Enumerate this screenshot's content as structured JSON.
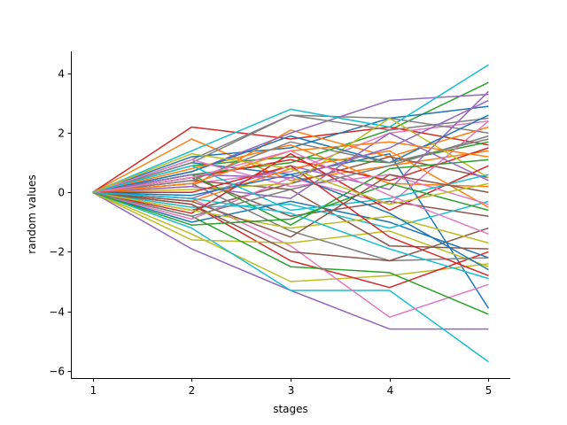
{
  "chart_data": {
    "type": "line",
    "title": "",
    "xlabel": "stages",
    "ylabel": "random values",
    "x": [
      1,
      2,
      3,
      4,
      5
    ],
    "xlim": [
      0.78,
      5.22
    ],
    "ylim": [
      -6.25,
      4.75
    ],
    "xticks": [
      1,
      2,
      3,
      4,
      5
    ],
    "yticks": [
      -6,
      -4,
      -2,
      0,
      2,
      4
    ],
    "ytick_labels": [
      "−6",
      "−4",
      "−2",
      "0",
      "2",
      "4"
    ],
    "grid": false,
    "legend": "none",
    "spines": [
      "left",
      "bottom"
    ],
    "palette": [
      "#1f77b4",
      "#ff7f0e",
      "#2ca02c",
      "#d62728",
      "#9467bd",
      "#8c564b",
      "#e377c2",
      "#7f7f7f",
      "#bcbd22",
      "#17becf"
    ],
    "series": [
      {
        "values": [
          0,
          1.0,
          0.6,
          1.3,
          -3.9
        ]
      },
      {
        "values": [
          0,
          1.8,
          0.4,
          0.9,
          1.4
        ]
      },
      {
        "values": [
          0,
          0.6,
          1.0,
          2.1,
          3.7
        ]
      },
      {
        "values": [
          0,
          2.2,
          1.8,
          2.2,
          1.6
        ]
      },
      {
        "values": [
          0,
          -1.9,
          -3.3,
          -4.6,
          -4.6
        ]
      },
      {
        "values": [
          0,
          0.5,
          -0.8,
          -0.3,
          -0.8
        ]
      },
      {
        "values": [
          0,
          0.3,
          0.7,
          2.0,
          2.4
        ]
      },
      {
        "values": [
          0,
          1.1,
          2.6,
          2.5,
          2.0
        ]
      },
      {
        "values": [
          0,
          -1.4,
          -3.0,
          -2.8,
          -2.4
        ]
      },
      {
        "values": [
          0,
          -1.2,
          -3.3,
          -3.3,
          -5.7
        ]
      },
      {
        "values": [
          0,
          1.2,
          1.5,
          2.5,
          2.9
        ]
      },
      {
        "values": [
          0,
          0.2,
          2.1,
          1.2,
          2.2
        ]
      },
      {
        "values": [
          0,
          0.9,
          1.2,
          1.0,
          1.7
        ]
      },
      {
        "values": [
          0,
          -0.4,
          -2.3,
          -3.2,
          -2.0
        ]
      },
      {
        "values": [
          0,
          0.7,
          2.0,
          3.1,
          3.3
        ]
      },
      {
        "values": [
          0,
          -0.6,
          0.3,
          1.2,
          0.5
        ]
      },
      {
        "values": [
          0,
          -0.2,
          -1.8,
          -4.2,
          -3.1
        ]
      },
      {
        "values": [
          0,
          1.0,
          2.6,
          2.1,
          2.5
        ]
      },
      {
        "values": [
          0,
          -1.6,
          -1.7,
          -1.3,
          -2.5
        ]
      },
      {
        "values": [
          0,
          1.4,
          2.8,
          2.2,
          4.3
        ]
      },
      {
        "values": [
          0,
          -1.0,
          -0.3,
          -1.0,
          -2.2
        ]
      },
      {
        "values": [
          0,
          0.8,
          1.6,
          0.3,
          0.2
        ]
      },
      {
        "values": [
          0,
          -0.8,
          -2.5,
          -2.7,
          -4.1
        ]
      },
      {
        "values": [
          0,
          0.5,
          1.1,
          0.4,
          1.5
        ]
      },
      {
        "values": [
          0,
          -0.2,
          0.9,
          0.1,
          3.4
        ]
      },
      {
        "values": [
          0,
          0.4,
          0.1,
          -1.8,
          -1.9
        ]
      },
      {
        "values": [
          0,
          -0.9,
          0.5,
          -0.4,
          2.4
        ]
      },
      {
        "values": [
          0,
          0.3,
          -1.3,
          -2.3,
          -2.2
        ]
      },
      {
        "values": [
          0,
          0.1,
          0.3,
          2.5,
          0.5
        ]
      },
      {
        "values": [
          0,
          -0.5,
          -0.4,
          -1.2,
          -0.3
        ]
      },
      {
        "values": [
          0,
          0.7,
          1.9,
          1.0,
          2.6
        ]
      },
      {
        "values": [
          0,
          -0.3,
          0.8,
          1.4,
          -0.5
        ]
      },
      {
        "values": [
          0,
          0.6,
          -1.1,
          0.8,
          1.1
        ]
      },
      {
        "values": [
          0,
          -0.7,
          1.3,
          -0.6,
          0.9
        ]
      },
      {
        "values": [
          0,
          0.2,
          -0.2,
          2.0,
          0.4
        ]
      },
      {
        "values": [
          0,
          -0.4,
          -2.0,
          -2.3,
          -1.2
        ]
      },
      {
        "values": [
          0,
          1.1,
          0.2,
          0.6,
          -0.4
        ]
      },
      {
        "values": [
          0,
          0.4,
          1.7,
          1.0,
          1.8
        ]
      },
      {
        "values": [
          0,
          -0.6,
          -1.2,
          -0.8,
          -1.7
        ]
      },
      {
        "values": [
          0,
          0.9,
          -0.6,
          -0.2,
          0.6
        ]
      },
      {
        "values": [
          0,
          -0.1,
          0.6,
          -0.7,
          -2.6
        ]
      },
      {
        "values": [
          0,
          0.3,
          1.4,
          1.7,
          1.2
        ]
      },
      {
        "values": [
          0,
          -1.1,
          -0.9,
          0.3,
          -0.6
        ]
      },
      {
        "values": [
          0,
          0.0,
          0.9,
          -1.5,
          -2.8
        ]
      },
      {
        "values": [
          0,
          0.6,
          0.5,
          1.5,
          3.1
        ]
      },
      {
        "values": [
          0,
          -0.3,
          -1.5,
          0.6,
          0.0
        ]
      },
      {
        "values": [
          0,
          0.5,
          1.4,
          -0.1,
          -1.4
        ]
      },
      {
        "values": [
          0,
          -0.8,
          0.1,
          0.9,
          1.9
        ]
      },
      {
        "values": [
          0,
          1.3,
          0.8,
          -0.4,
          0.3
        ]
      },
      {
        "values": [
          0,
          -0.2,
          -0.7,
          -1.9,
          -2.9
        ]
      }
    ]
  }
}
